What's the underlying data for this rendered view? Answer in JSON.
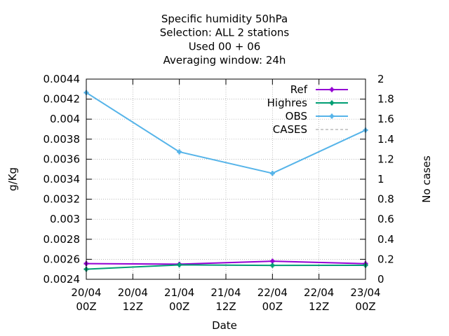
{
  "chart_data": {
    "type": "line",
    "title_lines": [
      "Specific humidity 50hPa",
      "Selection: ALL      2 stations",
      "Used  00 + 06",
      "Averaging window: 24h"
    ],
    "xlabel": "Date",
    "ylabel": "g/Kg",
    "y2label": "No cases",
    "x_ticks": [
      {
        "x": 0,
        "line1": "20/04",
        "line2": "00Z"
      },
      {
        "x": 12,
        "line1": "20/04",
        "line2": "12Z"
      },
      {
        "x": 24,
        "line1": "21/04",
        "line2": "00Z"
      },
      {
        "x": 36,
        "line1": "21/04",
        "line2": "12Z"
      },
      {
        "x": 48,
        "line1": "22/04",
        "line2": "00Z"
      },
      {
        "x": 60,
        "line1": "22/04",
        "line2": "12Z"
      },
      {
        "x": 72,
        "line1": "23/04",
        "line2": "00Z"
      }
    ],
    "x_range": [
      0,
      72
    ],
    "y_range": [
      0.0024,
      0.0044
    ],
    "y_ticks": [
      "0.0024",
      "0.0026",
      "0.0028",
      "0.003",
      "0.0032",
      "0.0034",
      "0.0036",
      "0.0038",
      "0.004",
      "0.0042",
      "0.0044"
    ],
    "y2_range": [
      0,
      2
    ],
    "y2_ticks": [
      "0",
      "0.2",
      "0.4",
      "0.6",
      "0.8",
      "1",
      "1.2",
      "1.4",
      "1.6",
      "1.8",
      "2"
    ],
    "grid": true,
    "legend_position": "top-right",
    "series": [
      {
        "name": "Ref",
        "color": "#9400d3",
        "style": "line-points",
        "axis": "y",
        "x": [
          0,
          24,
          48,
          72
        ],
        "values": [
          0.002557,
          0.002551,
          0.002581,
          0.002556
        ]
      },
      {
        "name": "Highres",
        "color": "#009e73",
        "style": "line-points",
        "axis": "y",
        "x": [
          0,
          24,
          48,
          72
        ],
        "values": [
          0.002501,
          0.002544,
          0.002539,
          0.00254
        ]
      },
      {
        "name": "OBS",
        "color": "#56b4e9",
        "style": "line-points",
        "axis": "y",
        "x": [
          0,
          24,
          48,
          72
        ],
        "values": [
          0.004265,
          0.003673,
          0.003459,
          0.00389
        ]
      },
      {
        "name": "CASES",
        "color": "#999999",
        "style": "dashed",
        "axis": "y2",
        "x": [
          0,
          24,
          48,
          72
        ],
        "values": [
          2,
          2,
          2,
          2
        ]
      }
    ]
  }
}
